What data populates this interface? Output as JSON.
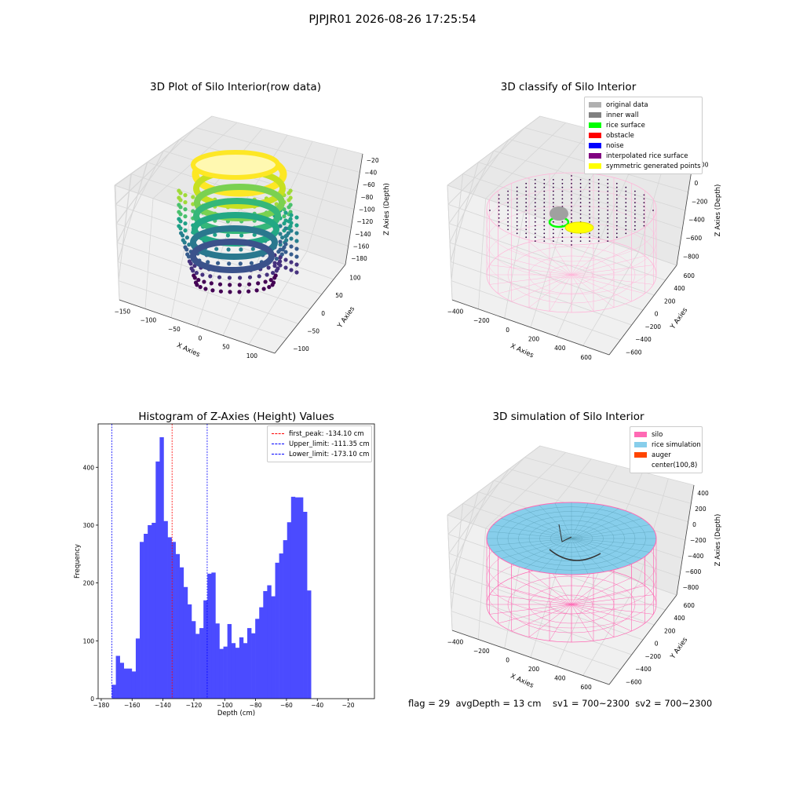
{
  "suptitle": "PJPJR01 2026-08-26 17:25:54",
  "footer": "flag = 29  avgDepth = 13 cm    sv1 = 700~2300  sv2 = 700~2300",
  "chart_data": [
    {
      "type": "scatter",
      "title": "3D Plot of Silo Interior(row data)",
      "xlabel": "X Axies",
      "ylabel": "Y Axies",
      "zlabel": "Z Axies (Depth)",
      "x_ticks": [
        "−150",
        "−100",
        "−50",
        "0",
        "50",
        "100"
      ],
      "y_ticks": [
        "−100",
        "−50",
        "0",
        "50",
        "100"
      ],
      "z_ticks": [
        "−20",
        "−40",
        "−60",
        "−80",
        "−100",
        "−120",
        "−140",
        "−160",
        "−180"
      ],
      "colormap": "viridis"
    },
    {
      "type": "scatter",
      "title": "3D classify of Silo Interior",
      "xlabel": "X Axies",
      "ylabel": "Y Axies",
      "zlabel": "Z Axies (Depth)",
      "x_ticks": [
        "−400",
        "−200",
        "0",
        "200",
        "400",
        "600"
      ],
      "y_ticks": [
        "−600",
        "−400",
        "−200",
        "0",
        "200",
        "400",
        "600"
      ],
      "z_ticks": [
        "200",
        "0",
        "−200",
        "−400",
        "−600",
        "−800"
      ],
      "legend": [
        {
          "label": "original data",
          "color": "#b0b0b0"
        },
        {
          "label": "inner wall",
          "color": "#808080"
        },
        {
          "label": "rice surface",
          "color": "#00ff00"
        },
        {
          "label": "obstacle",
          "color": "#ff0000"
        },
        {
          "label": "noise",
          "color": "#0000ff"
        },
        {
          "label": "interpolated rice surface",
          "color": "#800080"
        },
        {
          "label": "symmetric generated points",
          "color": "#ffff00"
        }
      ]
    },
    {
      "type": "bar",
      "title": "Histogram of Z-Axies (Height) Values",
      "xlabel": "Depth (cm)",
      "ylabel": "Frequency",
      "xlim": [
        -182,
        -3
      ],
      "ylim": [
        0,
        475
      ],
      "x_ticks": [
        -180,
        -160,
        -140,
        -120,
        -100,
        -80,
        -60,
        -40,
        -20
      ],
      "y_ticks": [
        0,
        100,
        200,
        300,
        400
      ],
      "bin_start": -173.1,
      "bin_width": 2.58,
      "values": [
        24,
        74,
        62,
        52,
        52,
        47,
        104,
        271,
        285,
        300,
        304,
        410,
        452,
        307,
        279,
        271,
        250,
        227,
        193,
        163,
        134,
        112,
        122,
        170,
        216,
        218,
        130,
        86,
        90,
        129,
        96,
        88,
        106,
        96,
        122,
        113,
        138,
        158,
        186,
        196,
        177,
        235,
        251,
        274,
        305,
        349,
        348,
        348,
        323,
        187
      ],
      "bar_color": "#4b4bff",
      "vlines": [
        {
          "label": "first_peak: -134.10 cm",
          "x": -134.1,
          "color": "#ff0000"
        },
        {
          "label": "Upper_limit: -111.35 cm",
          "x": -111.35,
          "color": "#0000ff"
        },
        {
          "label": "Lower_limit: -173.10 cm",
          "x": -173.1,
          "color": "#0000ff"
        }
      ]
    },
    {
      "type": "scatter",
      "title": "3D simulation of Silo Interior",
      "xlabel": "X Axies",
      "ylabel": "Y Axies",
      "zlabel": "Z Axies (Depth)",
      "x_ticks": [
        "−400",
        "−200",
        "0",
        "200",
        "400",
        "600"
      ],
      "y_ticks": [
        "−600",
        "−400",
        "−200",
        "0",
        "200",
        "400",
        "600"
      ],
      "z_ticks": [
        "400",
        "200",
        "0",
        "−200",
        "−400",
        "−600",
        "−800"
      ],
      "legend": [
        {
          "label": "silo",
          "color": "#ff69b4"
        },
        {
          "label": "rice simulation",
          "color": "#87ceeb"
        },
        {
          "label": "auger",
          "color": "#ff4500"
        },
        {
          "label": "center(100,8)",
          "color": ""
        }
      ]
    }
  ]
}
